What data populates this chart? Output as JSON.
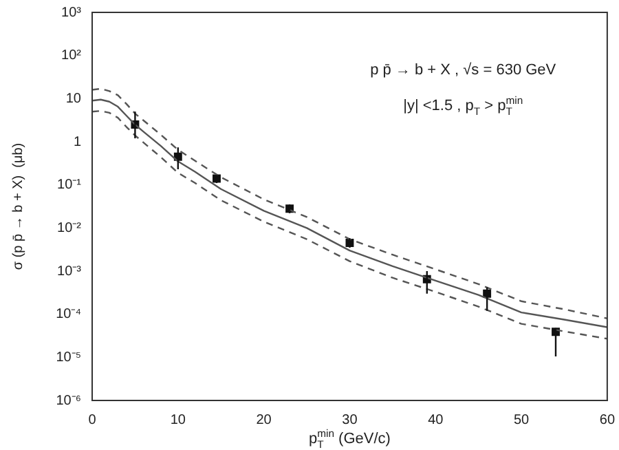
{
  "chart_data": {
    "type": "line",
    "xlabel": "p$_{T}$$^{min}$ (GeV/c)",
    "ylabel": "σ (p p̄ → b + X)  (μb)",
    "annotations": [
      "p p̄ → b + X , √s = 630 GeV",
      "|y| <1.5 , p$_{T}$ > p$_{T}$$^{min}$"
    ],
    "log": "y",
    "xlim": [
      0,
      60
    ],
    "xticks": [
      0,
      10,
      20,
      30,
      40,
      50,
      60
    ],
    "ylim": [
      1e-06,
      1000
    ],
    "yticks": [
      {
        "value": 1e-06,
        "label": "10⁻⁶"
      },
      {
        "value": 1e-05,
        "label": "10⁻⁵"
      },
      {
        "value": 0.0001,
        "label": "10⁻⁴"
      },
      {
        "value": 0.001,
        "label": "10⁻³"
      },
      {
        "value": 0.01,
        "label": "10⁻²"
      },
      {
        "value": 0.1,
        "label": "10⁻¹"
      },
      1,
      10,
      {
        "value": 100,
        "label": "10²"
      },
      {
        "value": 1000,
        "label": "10³"
      }
    ],
    "grid": false,
    "legend": false,
    "series": [
      {
        "color": "#555555",
        "line_style": "solid",
        "marker": "none",
        "x": [
          0,
          1,
          2,
          3,
          4,
          5,
          6,
          8,
          10,
          12,
          15,
          20,
          25,
          30,
          35,
          40,
          45,
          50,
          55,
          60
        ],
        "values": [
          9,
          9.5,
          8.5,
          6.5,
          4,
          2.5,
          1.7,
          0.8,
          0.35,
          0.2,
          0.08,
          0.025,
          0.01,
          0.003,
          0.0013,
          0.0006,
          0.00028,
          0.00011,
          7.5e-05,
          5e-05
        ]
      },
      {
        "color": "#555555",
        "line_style": "dashed",
        "marker": "none",
        "x": [
          0,
          1,
          2,
          3,
          4,
          5,
          6,
          8,
          10,
          12,
          15,
          20,
          25,
          30,
          35,
          40,
          45,
          50,
          55,
          60
        ],
        "values": [
          16,
          17,
          15,
          12,
          7.5,
          4.5,
          3.1,
          1.45,
          0.65,
          0.36,
          0.15,
          0.046,
          0.018,
          0.0055,
          0.0024,
          0.0011,
          0.0005,
          0.0002,
          0.00013,
          8e-05
        ]
      },
      {
        "color": "#555555",
        "line_style": "dashed",
        "marker": "none",
        "x": [
          0,
          1,
          2,
          3,
          4,
          5,
          6,
          8,
          10,
          12,
          15,
          20,
          25,
          30,
          35,
          40,
          45,
          50,
          55,
          60
        ],
        "values": [
          5,
          5.2,
          4.7,
          3.6,
          2.2,
          1.4,
          0.95,
          0.44,
          0.19,
          0.11,
          0.044,
          0.014,
          0.0055,
          0.0017,
          0.0007,
          0.00033,
          0.00015,
          6e-05,
          4e-05,
          2.7e-05
        ]
      },
      {
        "type": "scatter",
        "color": "#111111",
        "marker": "square",
        "x": [
          5,
          10,
          14.5,
          23,
          30,
          39,
          46,
          54
        ],
        "values": [
          2.5,
          0.45,
          0.14,
          0.028,
          0.0045,
          0.00065,
          0.0003,
          3.9e-05
        ],
        "errors": [
          [
            1.2,
            5
          ],
          [
            0.23,
            0.74
          ],
          [
            0.11,
            0.17
          ],
          [
            0.022,
            0.035
          ],
          [
            0.0035,
            0.0058
          ],
          [
            0.0003,
            0.001
          ],
          [
            0.00012,
            0.00042
          ],
          [
            1.05e-05,
            4.8e-05
          ]
        ]
      }
    ]
  }
}
